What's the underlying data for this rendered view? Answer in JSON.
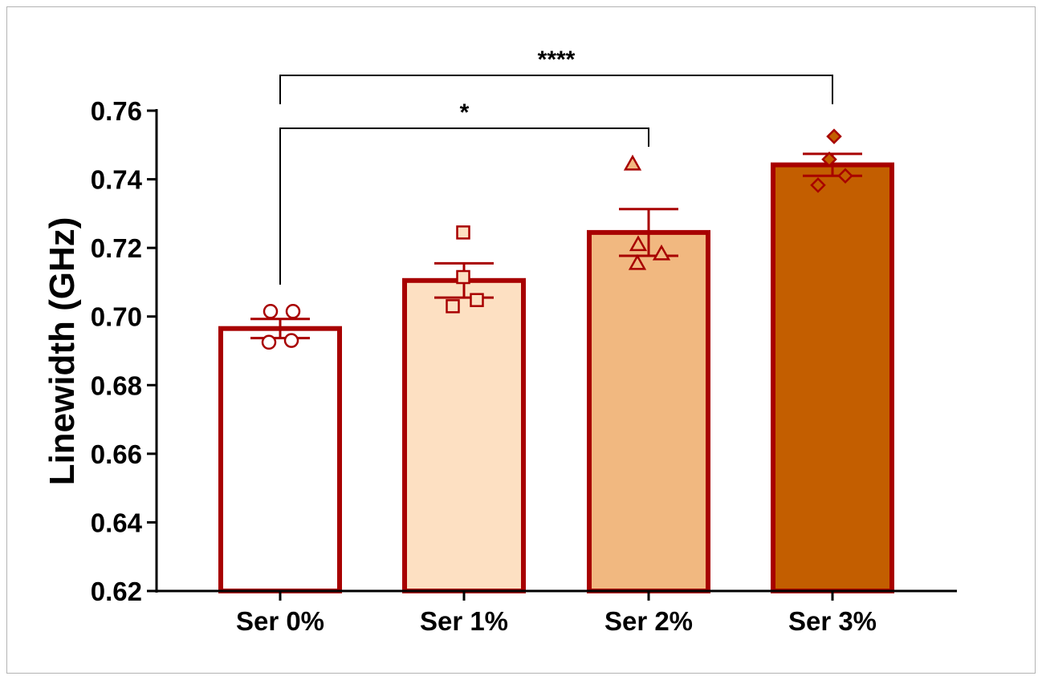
{
  "chart_data": {
    "type": "bar",
    "title": "",
    "xlabel": "",
    "ylabel": "Linewidth (GHz)",
    "ylim": [
      0.62,
      0.76
    ],
    "yticks": [
      0.62,
      0.64,
      0.66,
      0.68,
      0.7,
      0.72,
      0.74,
      0.76
    ],
    "ytick_labels": [
      "0.62",
      "0.64",
      "0.66",
      "0.68",
      "0.70",
      "0.72",
      "0.74",
      "0.76"
    ],
    "grid": false,
    "categories": [
      "Ser 0%",
      "Ser 1%",
      "Ser 2%",
      "Ser 3%"
    ],
    "values": [
      0.6965,
      0.7105,
      0.7245,
      0.7442
    ],
    "sem": [
      0.0028,
      0.005,
      0.0068,
      0.0032
    ],
    "points": [
      [
        0.7015,
        0.7015,
        0.6925,
        0.693
      ],
      [
        0.7245,
        0.7115,
        0.703,
        0.7048
      ],
      [
        0.7445,
        0.721,
        0.7183,
        0.7155
      ],
      [
        0.7525,
        0.7458,
        0.741,
        0.7383
      ]
    ],
    "markers": [
      "circle",
      "square",
      "triangle",
      "diamond"
    ],
    "fill_colors": [
      "#ffffff",
      "#fde0c2",
      "#f1b880",
      "#c35e00"
    ],
    "marker_fill_colors": [
      "#ffffff",
      "#fde0c2",
      "#f1b880",
      "#c35e00"
    ],
    "edge_color": "#a80000",
    "significance": [
      {
        "from": "Ser 0%",
        "to": "Ser 2%",
        "label": "*"
      },
      {
        "from": "Ser 0%",
        "to": "Ser 3%",
        "label": "****"
      }
    ]
  }
}
